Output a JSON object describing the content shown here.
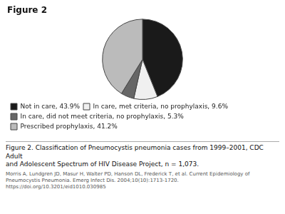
{
  "chart_data": {
    "type": "pie",
    "title": "Figure 2",
    "categories": [
      "Not in care, 43.9%",
      "In care, met criteria, no prophylaxis, 9.6%",
      "In care, did not meet criteria, no prophylaxis, 5.3%",
      "Prescribed prophylaxis, 41.2%"
    ],
    "values": [
      43.9,
      9.6,
      5.3,
      41.2
    ],
    "colors": [
      "#1a1a1a",
      "#f0f0f0",
      "#666666",
      "#bbbbbb"
    ],
    "legend": "bottom",
    "caption": "Figure 2. Classification of Pneumocystis pneumonia cases from 1999–2001, CDC Adult\nand Adolescent Spectrum of HIV Disease Project, n = 1,073.",
    "footnote": "Morris A, Lundgren JD, Masur H, Walter PD, Hanson DL, Frederick T, et al. Current Epidemiology of Pneumocystis Pneumonia. Emerg Infect Dis. 2004;10(10):1713-1720.\nhttps://doi.org/10.3201/eid1010.030985"
  }
}
